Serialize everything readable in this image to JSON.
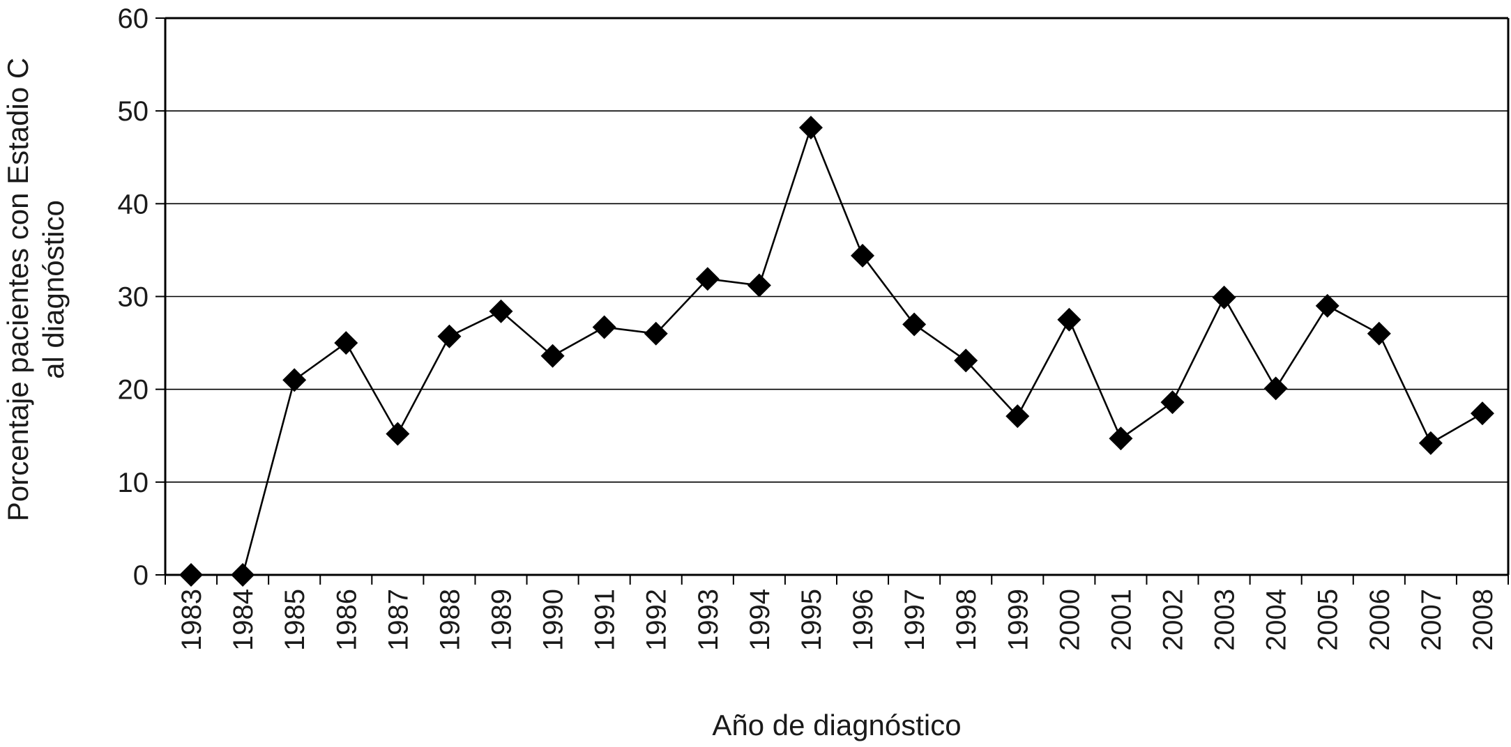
{
  "chart_data": {
    "type": "line",
    "title": "",
    "xlabel": "Año de diagnóstico",
    "ylabel_lines": [
      "Porcentaje pacientes con Estadio C",
      "al diagnóstico"
    ],
    "ylim": [
      0,
      60
    ],
    "yticks": [
      0,
      10,
      20,
      30,
      40,
      50,
      60
    ],
    "grid": "horizontal",
    "marker": "diamond",
    "categories": [
      "1983",
      "1984",
      "1985",
      "1986",
      "1987",
      "1988",
      "1989",
      "1990",
      "1991",
      "1992",
      "1993",
      "1994",
      "1995",
      "1996",
      "1997",
      "1998",
      "1999",
      "2000",
      "2001",
      "2002",
      "2003",
      "2004",
      "2005",
      "2006",
      "2007",
      "2008"
    ],
    "series": [
      {
        "values": [
          0,
          0,
          21,
          25,
          15.2,
          25.7,
          28.4,
          23.6,
          26.7,
          26,
          31.9,
          31.2,
          48.2,
          34.4,
          27,
          23.1,
          17.1,
          27.5,
          14.7,
          18.6,
          29.9,
          20.1,
          29,
          26,
          14.2,
          17.4
        ],
        "color": "#000000"
      }
    ]
  }
}
